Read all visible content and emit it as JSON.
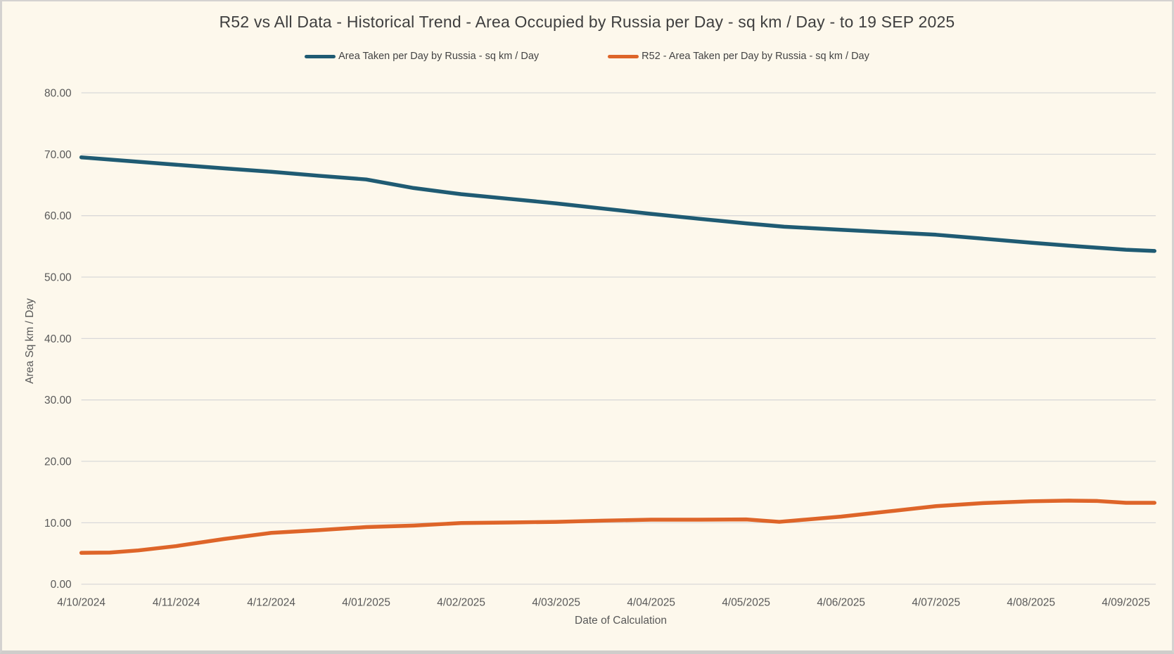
{
  "page": {
    "background": "#FDF8EC",
    "border_color": "#D4D2D0"
  },
  "chart_data": {
    "type": "line",
    "title": "R52 vs All Data - Historical Trend - Area Occupied by Russia per Day - sq km / Day - to 19 SEP 2025",
    "xlabel": "Date of Calculation",
    "ylabel": "Area Sq km / Day",
    "ylim": [
      0,
      80
    ],
    "grid": true,
    "legend_position": "top",
    "y_tick_labels": [
      "0.00",
      "10.00",
      "20.00",
      "30.00",
      "40.00",
      "50.00",
      "60.00",
      "70.00",
      "80.00"
    ],
    "y_tick_values": [
      0,
      10,
      20,
      30,
      40,
      50,
      60,
      70,
      80
    ],
    "x_tick_labels": [
      "4/10/2024",
      "4/11/2024",
      "4/12/2024",
      "4/01/2025",
      "4/02/2025",
      "4/03/2025",
      "4/04/2025",
      "4/05/2025",
      "4/06/2025",
      "4/07/2025",
      "4/08/2025",
      "4/09/2025"
    ],
    "x_unit": "months since 4/10/2024 (tick index), data extends to 19 SEP 2025",
    "colors": {
      "grid": "#D9D9D9",
      "tick_text": "#595959"
    },
    "series": [
      {
        "name": "Area Taken per Day by Russia - sq km / Day",
        "color": "#1F5B73",
        "points": [
          [
            0,
            69.5
          ],
          [
            0.5,
            68.9
          ],
          [
            1,
            68.3
          ],
          [
            1.5,
            67.7
          ],
          [
            2,
            67.15
          ],
          [
            2.5,
            66.5
          ],
          [
            3,
            65.9
          ],
          [
            3.5,
            64.5
          ],
          [
            4,
            63.5
          ],
          [
            4.5,
            62.75
          ],
          [
            5,
            62.0
          ],
          [
            5.5,
            61.15
          ],
          [
            6,
            60.3
          ],
          [
            6.5,
            59.5
          ],
          [
            7,
            58.75
          ],
          [
            7.4,
            58.2
          ],
          [
            8,
            57.7
          ],
          [
            8.5,
            57.3
          ],
          [
            9,
            56.9
          ],
          [
            9.5,
            56.25
          ],
          [
            10,
            55.6
          ],
          [
            10.5,
            55.0
          ],
          [
            11,
            54.45
          ],
          [
            11.3,
            54.25
          ]
        ]
      },
      {
        "name": "R52 - Area Taken per Day by Russia - sq km / Day",
        "color": "#DE6529",
        "points": [
          [
            0,
            5.1
          ],
          [
            0.3,
            5.15
          ],
          [
            0.6,
            5.5
          ],
          [
            1,
            6.2
          ],
          [
            1.5,
            7.35
          ],
          [
            2,
            8.35
          ],
          [
            2.5,
            8.8
          ],
          [
            3,
            9.3
          ],
          [
            3.5,
            9.55
          ],
          [
            4,
            9.95
          ],
          [
            4.5,
            10.05
          ],
          [
            5,
            10.15
          ],
          [
            5.5,
            10.35
          ],
          [
            6,
            10.5
          ],
          [
            6.5,
            10.5
          ],
          [
            7,
            10.55
          ],
          [
            7.35,
            10.15
          ],
          [
            8,
            11.0
          ],
          [
            8.5,
            11.85
          ],
          [
            9,
            12.7
          ],
          [
            9.5,
            13.2
          ],
          [
            10,
            13.5
          ],
          [
            10.4,
            13.6
          ],
          [
            10.7,
            13.55
          ],
          [
            11,
            13.25
          ],
          [
            11.3,
            13.25
          ]
        ]
      }
    ]
  }
}
